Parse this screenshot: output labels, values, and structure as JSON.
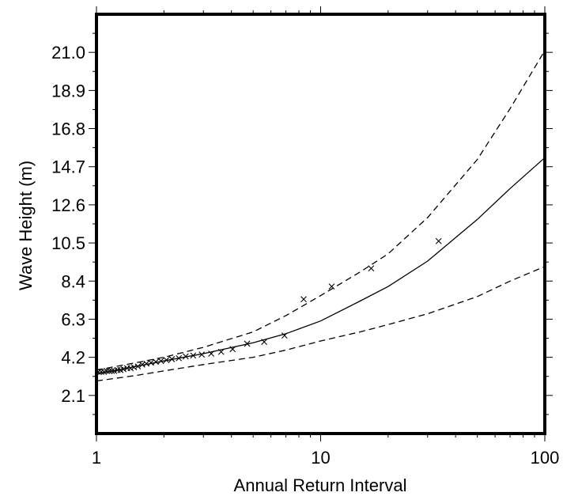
{
  "chart_data": {
    "type": "line",
    "title": "",
    "xlabel": "Annual Return Interval",
    "ylabel": "Wave Height (m)",
    "x_scale": "log",
    "xlim": [
      1,
      100
    ],
    "ylim": [
      0,
      23.1
    ],
    "x_ticks": [
      "1",
      "10",
      "100"
    ],
    "y_ticks": [
      "2.1",
      "4.2",
      "6.3",
      "8.4",
      "10.5",
      "12.6",
      "14.7",
      "16.8",
      "18.9",
      "21.0"
    ],
    "grid": false,
    "series": [
      {
        "style": "solid",
        "x": [
          1,
          1.25,
          1.5,
          2,
          3,
          5,
          7,
          10,
          15,
          20,
          30,
          50,
          70,
          100
        ],
        "y": [
          3.3,
          3.5,
          3.7,
          4.0,
          4.4,
          5.0,
          5.5,
          6.2,
          7.3,
          8.1,
          9.5,
          11.8,
          13.5,
          15.2
        ]
      },
      {
        "style": "dashed",
        "x": [
          1,
          1.5,
          2,
          3,
          5,
          7,
          10,
          15,
          20,
          30,
          50,
          70,
          100
        ],
        "y": [
          3.5,
          3.9,
          4.2,
          4.75,
          5.6,
          6.5,
          7.6,
          8.9,
          9.9,
          11.9,
          15.1,
          17.9,
          21.1
        ]
      },
      {
        "style": "dashed",
        "x": [
          1,
          1.5,
          2,
          3,
          5,
          7,
          10,
          15,
          20,
          30,
          50,
          70,
          100
        ],
        "y": [
          2.9,
          3.2,
          3.45,
          3.8,
          4.2,
          4.6,
          5.1,
          5.6,
          6.0,
          6.6,
          7.55,
          8.4,
          9.2
        ]
      }
    ],
    "observations": {
      "marker": "x",
      "x": [
        1.02,
        1.05,
        1.08,
        1.11,
        1.14,
        1.17,
        1.2,
        1.24,
        1.28,
        1.32,
        1.37,
        1.42,
        1.47,
        1.53,
        1.6,
        1.67,
        1.75,
        1.84,
        1.94,
        2.05,
        2.17,
        2.33,
        2.5,
        2.7,
        2.95,
        3.25,
        3.6,
        4.05,
        4.7,
        5.6,
        6.9,
        8.4,
        11.2,
        16.8,
        33.6
      ],
      "y": [
        3.4,
        3.4,
        3.4,
        3.45,
        3.45,
        3.45,
        3.45,
        3.5,
        3.5,
        3.55,
        3.6,
        3.6,
        3.65,
        3.7,
        3.8,
        3.85,
        3.9,
        3.95,
        4.0,
        4.05,
        4.1,
        4.15,
        4.25,
        4.3,
        4.35,
        4.4,
        4.5,
        4.65,
        4.95,
        5.05,
        5.4,
        7.4,
        8.1,
        9.1,
        10.6
      ]
    }
  }
}
